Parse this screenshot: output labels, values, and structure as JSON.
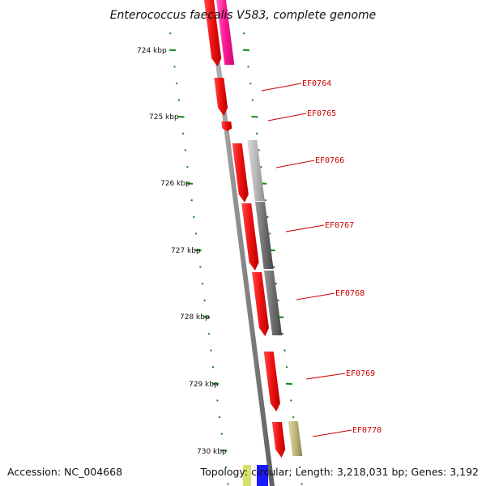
{
  "title": "Enterococcus faecalis V583, complete genome",
  "footer": {
    "accession": "Accession: NC_004668",
    "summary": "Topology: circular; Length: 3,218,031 bp; Genes: 3,192"
  },
  "colors": {
    "forward_strand": "#ee1111",
    "forward_alt": "#ff1493",
    "reverse_light": "#b8b8b8",
    "reverse_dark": "#6e6e6e",
    "reverse_tan": "#c2b77a",
    "backbone": "#8a8a8a",
    "tick": "#118811",
    "label": "#cc0000"
  },
  "scale_labels": [
    "724 kbp",
    "725 kbp",
    "726 kbp",
    "727 kbp",
    "728 kbp",
    "729 kbp",
    "730 kbp"
  ],
  "gene_labels": [
    "EF0764",
    "EF0765",
    "EF0766",
    "EF0767",
    "EF0768",
    "EF0769",
    "EF0770"
  ]
}
